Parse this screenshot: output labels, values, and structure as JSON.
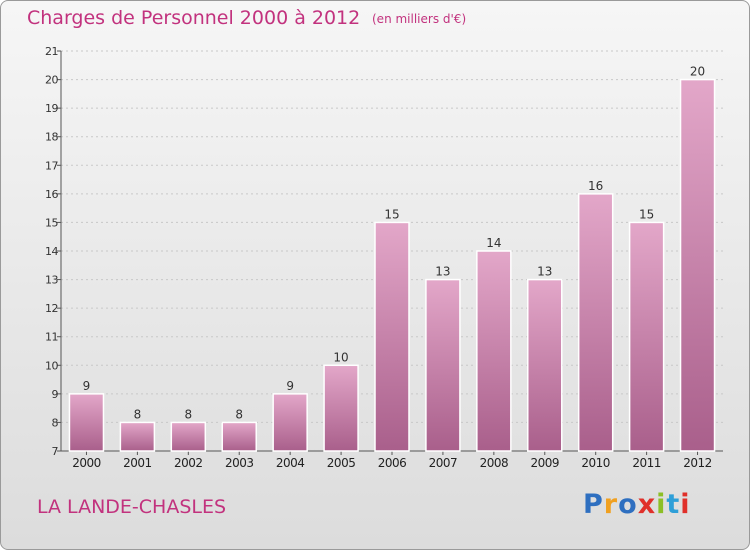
{
  "header": {
    "title": "Charges de Personnel 2000 à 2012",
    "subtitle": "(en milliers d'€)"
  },
  "footer": {
    "commune": "LA LANDE-CHASLES",
    "logo_letters": [
      "P",
      "r",
      "o",
      "x",
      "i",
      "t",
      "i"
    ]
  },
  "colors": {
    "accent": "#c2327e",
    "bar_light": "#e3a7c9",
    "bar_dark": "#a95f8b",
    "logo": [
      "#2e6fc0",
      "#f0a020",
      "#2e6fc0",
      "#e0302a",
      "#8cbf26",
      "#2e9fd8",
      "#e0302a"
    ]
  },
  "chart_data": {
    "type": "bar",
    "title": "Charges de Personnel 2000 à 2012",
    "subtitle": "(en milliers d'€)",
    "categories": [
      "2000",
      "2001",
      "2002",
      "2003",
      "2004",
      "2005",
      "2006",
      "2007",
      "2008",
      "2009",
      "2010",
      "2011",
      "2012"
    ],
    "values": [
      9,
      8,
      8,
      8,
      9,
      10,
      15,
      13,
      14,
      13,
      16,
      15,
      20
    ],
    "ylim": [
      7,
      21
    ],
    "yticks": [
      7,
      8,
      9,
      10,
      11,
      12,
      13,
      14,
      15,
      16,
      17,
      18,
      19,
      20,
      21
    ],
    "xlabel": "",
    "ylabel": "",
    "grid": true
  }
}
